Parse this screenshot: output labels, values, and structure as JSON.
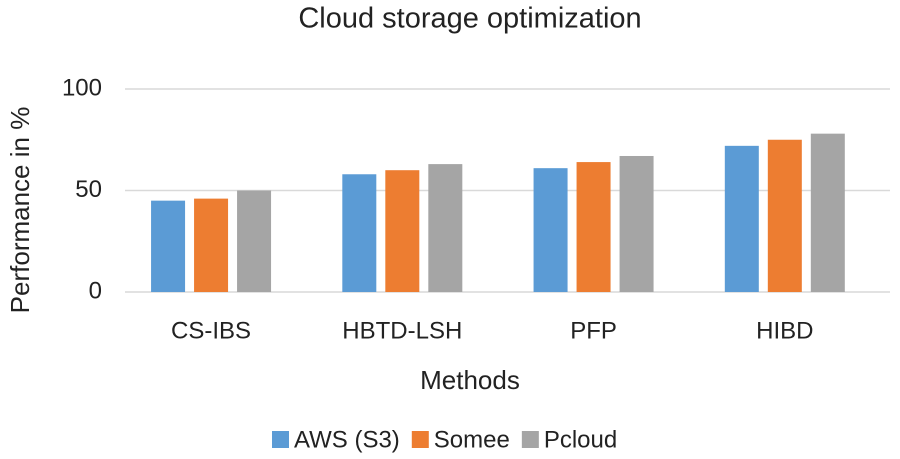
{
  "chart_data": {
    "type": "bar",
    "title": "Cloud storage optimization",
    "x_label": "Methods",
    "y_label": "Performance in %",
    "categories": [
      "CS-IBS",
      "HBTD-LSH",
      "PFP",
      "HIBD"
    ],
    "series": [
      {
        "name": "AWS (S3)",
        "color": "#5b9bd5",
        "values": [
          45,
          58,
          61,
          72
        ]
      },
      {
        "name": "Somee",
        "color": "#ed7d31",
        "values": [
          46,
          60,
          64,
          75
        ]
      },
      {
        "name": "Pcloud",
        "color": "#a5a5a5",
        "values": [
          50,
          63,
          67,
          78
        ]
      }
    ],
    "ylim": [
      0,
      100
    ],
    "yticks": [
      0,
      50,
      100
    ],
    "grid": true,
    "legend": "bottom"
  }
}
